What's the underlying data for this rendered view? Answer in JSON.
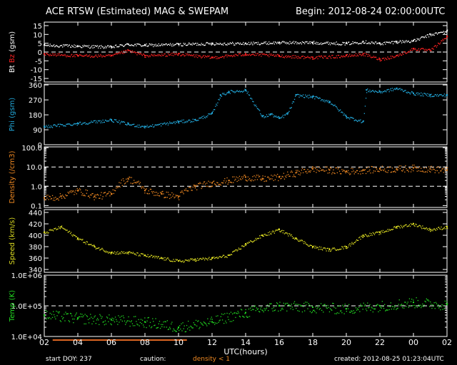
{
  "header": {
    "title": "ACE RTSW (Estimated) MAG & SWEPAM",
    "begin": "Begin: 2012-08-24 02:00:00UTC"
  },
  "footer": {
    "start_doy": "start DOY: 237",
    "caution_label": "caution:",
    "caution_note": "density < 1",
    "created": "created: 2012-08-25 01:23:04UTC"
  },
  "colors": {
    "bt": "#ffffff",
    "bz": "#ff2222",
    "phi": "#22aadd",
    "density": "#ee8822",
    "speed": "#dddd22",
    "temp": "#22dd22",
    "caution": "#dd6622"
  },
  "chart_data": [
    {
      "id": "mag",
      "type": "scatter",
      "ylabel_parts": [
        "Bt",
        "Bz",
        "(gsm)"
      ],
      "ylim": [
        -17,
        17
      ],
      "yticks": [
        "15",
        "10",
        "5",
        "0",
        "-5",
        "-10",
        "-15"
      ],
      "ytick_values": [
        15,
        10,
        5,
        0,
        -5,
        -10,
        -15
      ],
      "dashed_lines": [
        0
      ],
      "x": [
        2,
        4,
        6,
        7,
        8,
        10,
        12,
        14,
        16,
        18,
        20,
        21,
        22,
        23,
        24,
        25,
        26
      ],
      "series": [
        {
          "key": "bt",
          "values": [
            4,
            3.5,
            3,
            4.5,
            4,
            4.5,
            5,
            5,
            5.5,
            5.5,
            5,
            6,
            5,
            6,
            6.5,
            10,
            12
          ]
        },
        {
          "key": "bz",
          "values": [
            -1,
            -2,
            -2,
            1,
            -2,
            -1,
            -3,
            -1,
            -2,
            -3,
            -2,
            -1,
            -4,
            -2,
            2,
            1,
            9
          ]
        }
      ]
    },
    {
      "id": "phi",
      "type": "scatter",
      "ylabel": "Phi (gsm)",
      "ylim": [
        0,
        365
      ],
      "yticks": [
        "360",
        "270",
        "180",
        "90",
        "0"
      ],
      "ytick_values": [
        360,
        270,
        180,
        90,
        0
      ],
      "x": [
        2,
        4,
        6,
        7,
        8,
        10,
        11,
        12,
        12.5,
        13,
        14,
        15,
        15.5,
        16,
        16.5,
        17,
        18,
        19,
        20,
        21,
        21.2,
        22,
        23,
        24,
        25,
        26
      ],
      "series": [
        {
          "key": "phi",
          "values": [
            110,
            130,
            150,
            125,
            110,
            140,
            150,
            190,
            300,
            320,
            330,
            170,
            185,
            160,
            190,
            300,
            290,
            260,
            170,
            140,
            330,
            320,
            340,
            310,
            300,
            300
          ]
        }
      ]
    },
    {
      "id": "density",
      "type": "scatter",
      "ylabel": "Density (/cm3)",
      "yscale": "log",
      "ylim": [
        0.08,
        110
      ],
      "yticks": [
        "100.0",
        "10.0",
        "1.0",
        "0.1"
      ],
      "ytick_values": [
        100,
        10,
        1,
        0.1
      ],
      "dashed_lines": [
        10,
        1
      ],
      "x": [
        2,
        3,
        4,
        5,
        6,
        7,
        8,
        9,
        10,
        11,
        12,
        13,
        14,
        15,
        16,
        17,
        18,
        19,
        20,
        21,
        22,
        23,
        24,
        25,
        26
      ],
      "series": [
        {
          "key": "density",
          "values": [
            0.25,
            0.3,
            0.6,
            0.3,
            0.4,
            2.5,
            0.6,
            0.4,
            0.3,
            1.0,
            1.5,
            2.0,
            3.0,
            2.5,
            3.0,
            5.0,
            8.0,
            7.0,
            6.0,
            7.0,
            8.0,
            8.0,
            9.0,
            8.0,
            7.0
          ]
        }
      ]
    },
    {
      "id": "speed",
      "type": "scatter",
      "ylabel": "Speed (km/s)",
      "ylim": [
        335,
        445
      ],
      "yticks": [
        "440",
        "420",
        "400",
        "380",
        "360",
        "340"
      ],
      "ytick_values": [
        440,
        420,
        400,
        380,
        360,
        340
      ],
      "x": [
        2,
        3,
        4,
        5,
        6,
        7,
        8,
        9,
        10,
        11,
        12,
        13,
        14,
        15,
        16,
        17,
        18,
        19,
        20,
        21,
        22,
        23,
        24,
        25,
        26
      ],
      "series": [
        {
          "key": "speed",
          "values": [
            405,
            415,
            395,
            380,
            370,
            370,
            365,
            360,
            355,
            358,
            360,
            365,
            385,
            400,
            410,
            395,
            380,
            375,
            380,
            400,
            405,
            415,
            420,
            410,
            415
          ]
        }
      ]
    },
    {
      "id": "temp",
      "type": "scatter",
      "ylabel": "Temp (K)",
      "yscale": "log",
      "ylim": [
        10000,
        1000000
      ],
      "yticks": [
        "1.0E+06",
        "1.0E+05",
        "1.0E+04"
      ],
      "ytick_values": [
        1000000,
        100000,
        10000
      ],
      "dashed_lines": [
        100000
      ],
      "x": [
        2,
        4,
        6,
        8,
        10,
        12,
        14,
        16,
        18,
        20,
        22,
        24,
        26
      ],
      "series": [
        {
          "key": "temp",
          "values": [
            50000,
            40000,
            35000,
            30000,
            20000,
            30000,
            60000,
            100000,
            90000,
            80000,
            100000,
            130000,
            110000
          ]
        }
      ]
    }
  ],
  "xaxis": {
    "label": "UTC(hours)",
    "ticks": [
      "02",
      "04",
      "06",
      "08",
      "10",
      "12",
      "14",
      "16",
      "18",
      "20",
      "22",
      "00",
      "02"
    ],
    "tick_values": [
      2,
      4,
      6,
      8,
      10,
      12,
      14,
      16,
      18,
      20,
      22,
      24,
      26
    ],
    "xlim": [
      2,
      26
    ],
    "caution_ranges": [
      [
        2.5,
        10.5
      ]
    ]
  }
}
